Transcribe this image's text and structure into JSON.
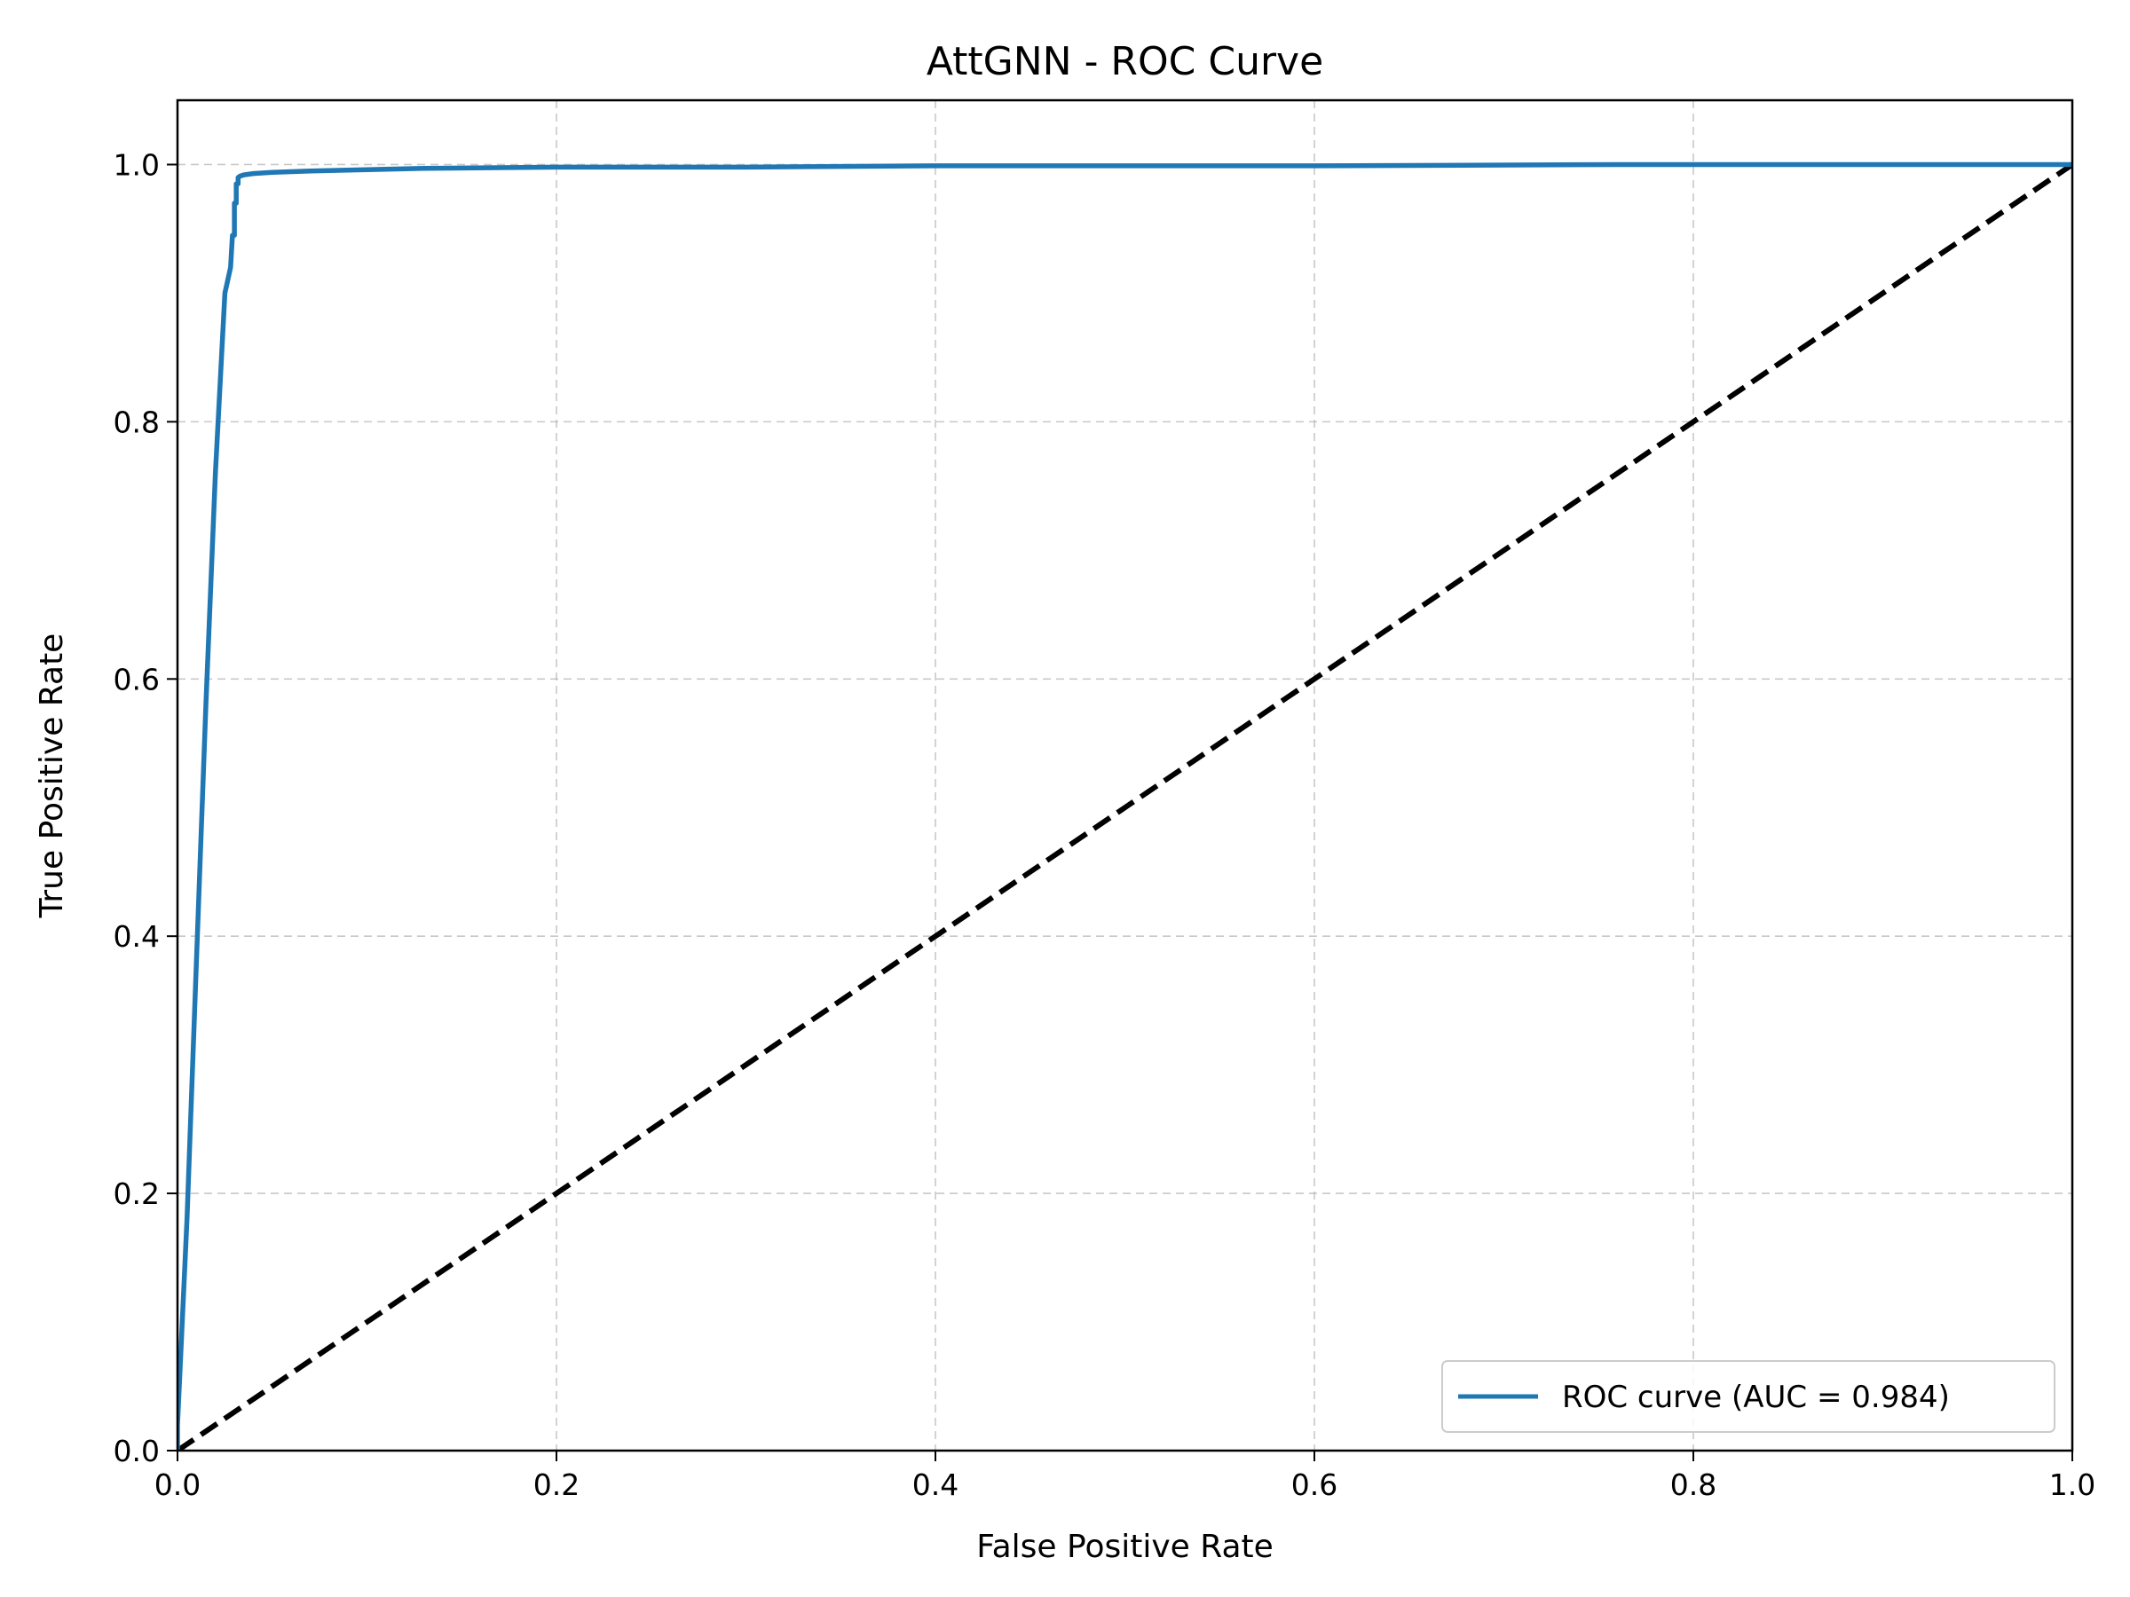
{
  "chart_data": {
    "type": "line",
    "title": "AttGNN - ROC Curve",
    "xlabel": "False Positive Rate",
    "ylabel": "True Positive Rate",
    "xlim": [
      0.0,
      1.0
    ],
    "ylim": [
      0.0,
      1.05
    ],
    "x_ticks": [
      "0.0",
      "0.2",
      "0.4",
      "0.6",
      "0.8",
      "1.0"
    ],
    "y_ticks": [
      "0.0",
      "0.2",
      "0.4",
      "0.6",
      "0.8",
      "1.0"
    ],
    "grid": true,
    "legend_position": "lower-right",
    "series": [
      {
        "name": "ROC curve (AUC = 0.984)",
        "color": "#1f77b4",
        "style": "solid",
        "x": [
          0.0,
          0.0,
          0.005,
          0.01,
          0.015,
          0.02,
          0.025,
          0.028,
          0.029,
          0.03,
          0.03,
          0.031,
          0.031,
          0.032,
          0.032,
          0.033,
          0.035,
          0.04,
          0.05,
          0.07,
          0.1,
          0.13,
          0.2,
          0.3,
          0.4,
          0.6,
          0.76,
          0.85,
          1.0
        ],
        "y": [
          0.0,
          0.02,
          0.18,
          0.38,
          0.58,
          0.76,
          0.9,
          0.92,
          0.945,
          0.945,
          0.97,
          0.97,
          0.985,
          0.985,
          0.99,
          0.991,
          0.992,
          0.993,
          0.994,
          0.995,
          0.996,
          0.997,
          0.998,
          0.998,
          0.999,
          0.999,
          1.0,
          1.0,
          1.0
        ]
      },
      {
        "name": "",
        "color": "#000000",
        "style": "dashed",
        "x": [
          0.0,
          1.0
        ],
        "y": [
          0.0,
          1.0
        ]
      }
    ],
    "legend": [
      "ROC curve (AUC = 0.984)"
    ]
  }
}
